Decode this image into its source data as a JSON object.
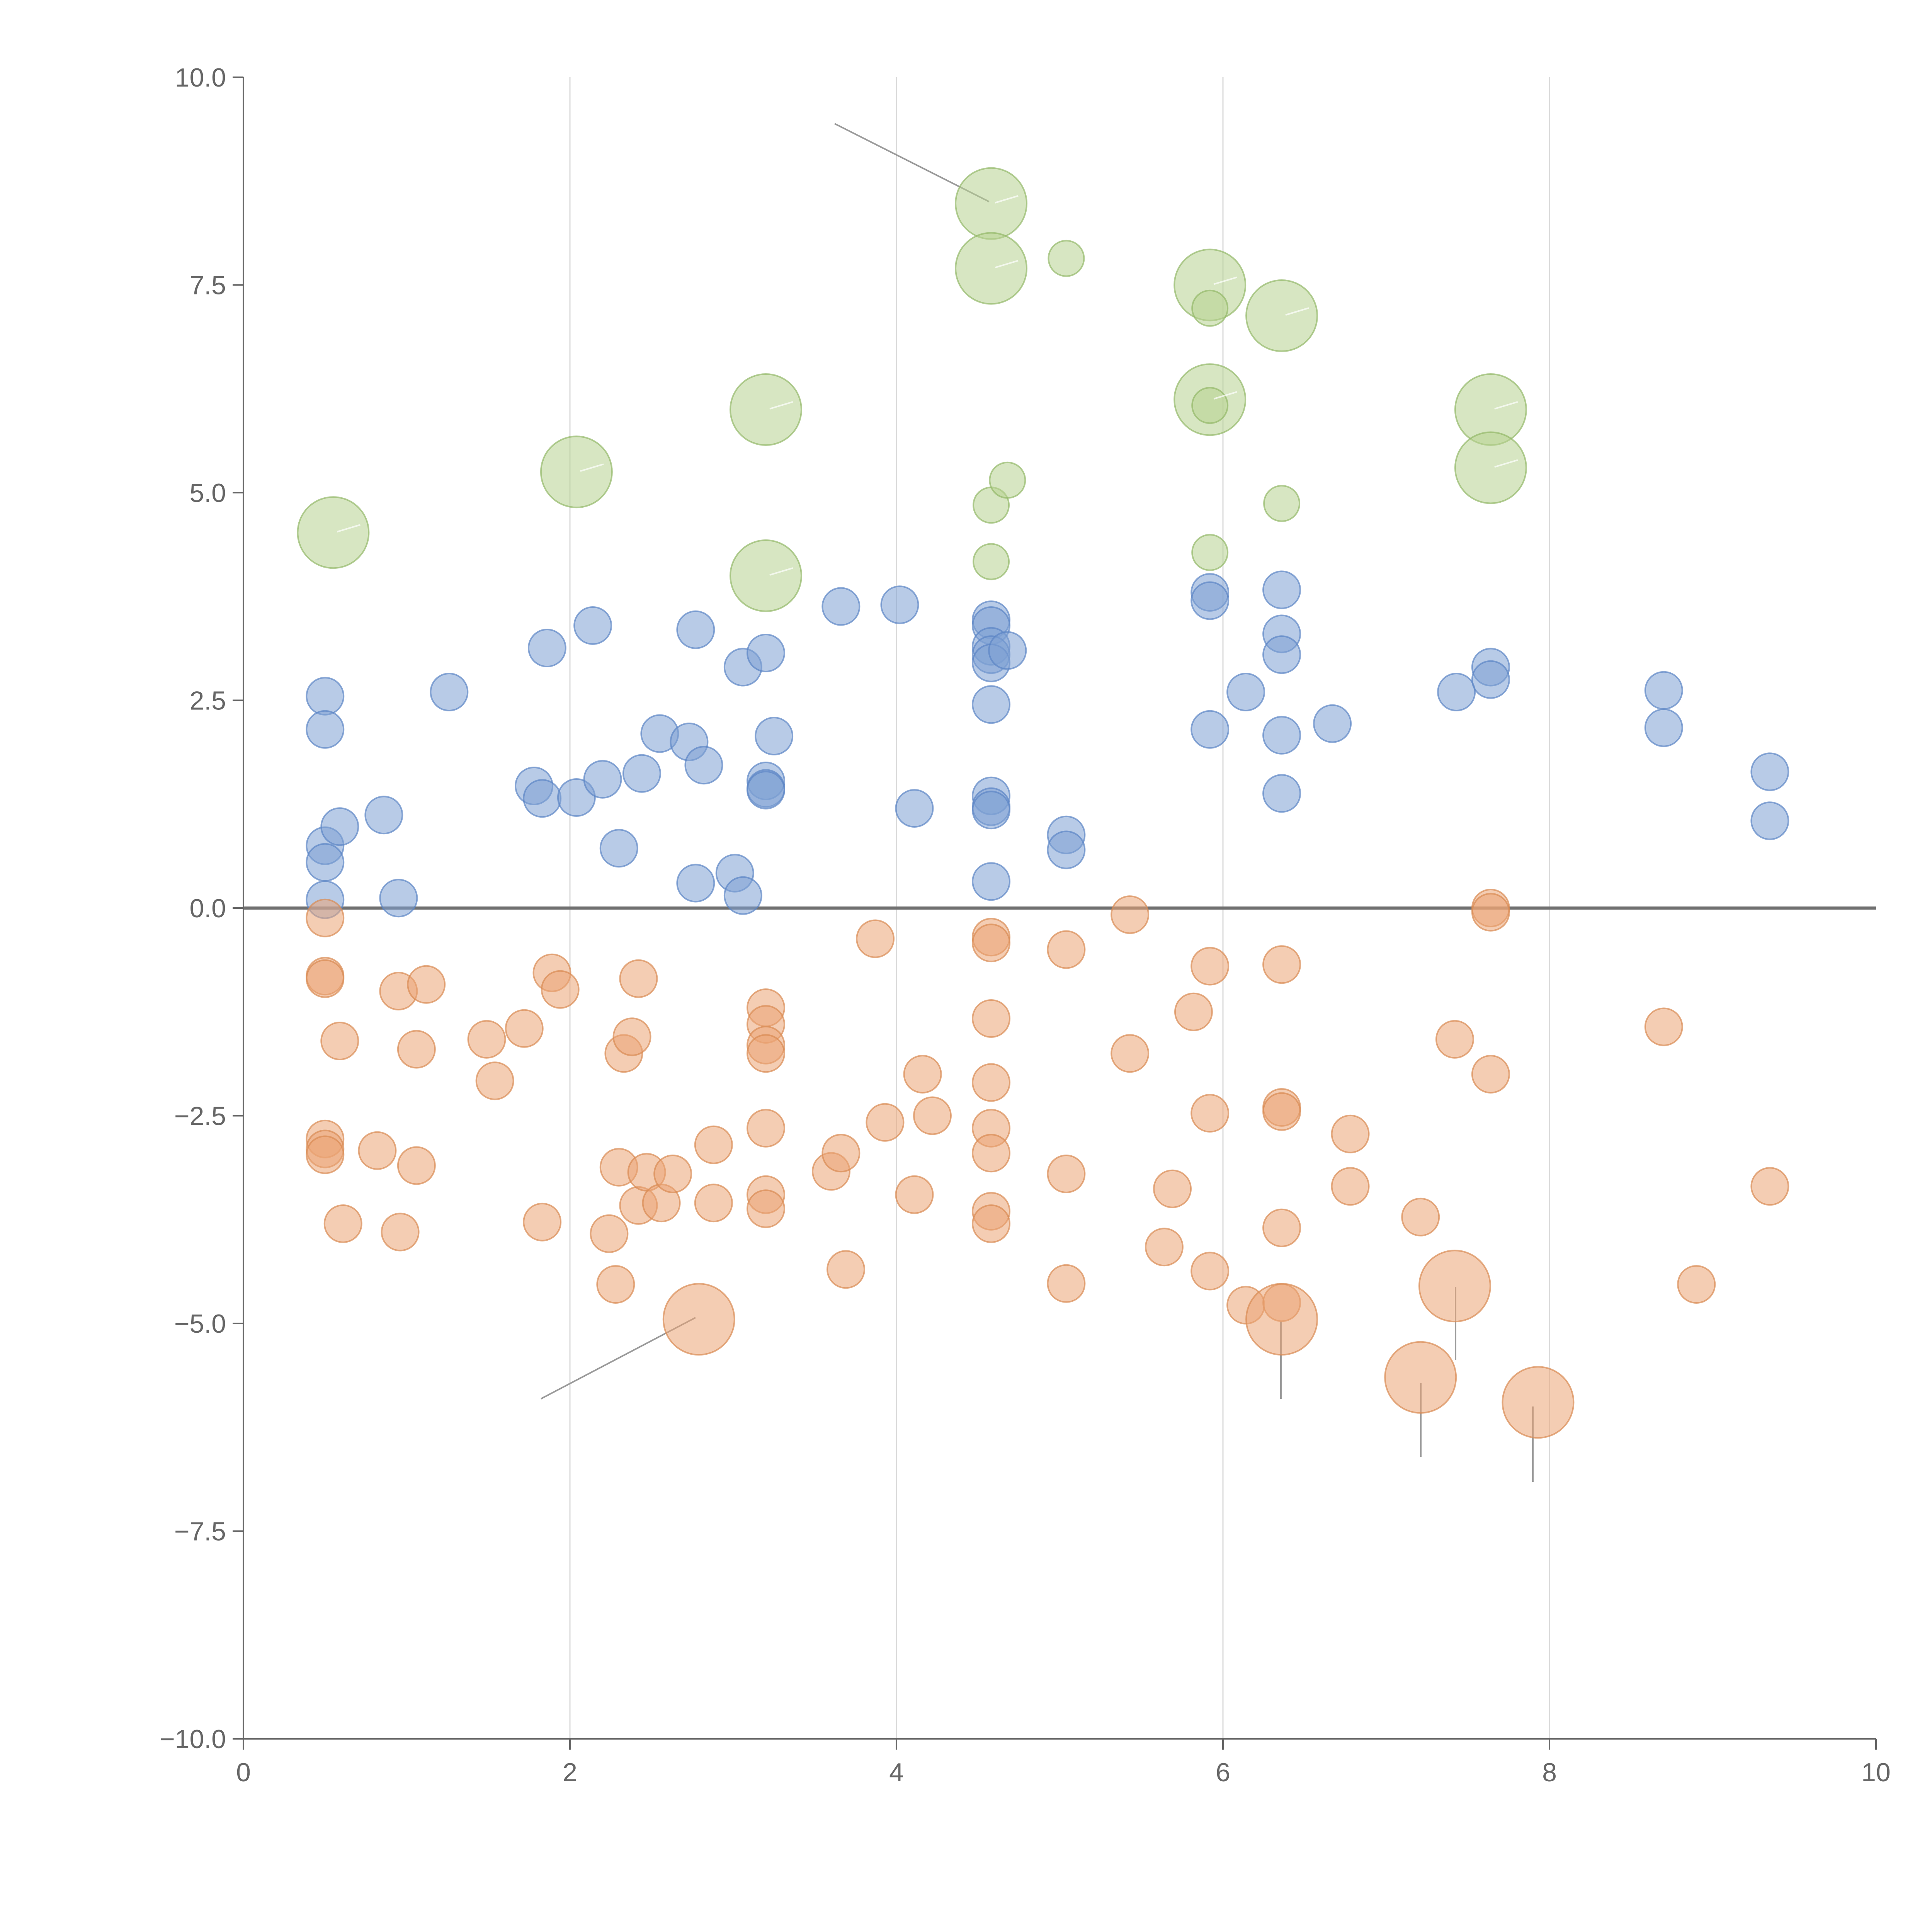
{
  "chart_data": {
    "type": "scatter",
    "title": "",
    "xlabel": "",
    "ylabel": "",
    "xlim": [
      0,
      10
    ],
    "ylim": [
      -10,
      10
    ],
    "x_ticks": [
      0,
      2,
      4,
      6,
      8,
      10
    ],
    "x_tick_labels": [
      "0",
      "2",
      "4",
      "6",
      "8",
      "10"
    ],
    "y_ticks": [
      10,
      7.5,
      5,
      2.5,
      0,
      -2.5,
      -5,
      -7.5,
      -10
    ],
    "y_tick_labels": [
      "10.0",
      "7.5",
      "5.0",
      "2.5",
      "0.0",
      "−2.5",
      "−5.0",
      "−7.5",
      "−10.0"
    ],
    "vertical_grid_at": [
      2,
      4,
      6,
      8
    ],
    "reference_line_y": 0,
    "colors": {
      "blue": "#7da0d4",
      "blue_edge": "#5b84c4",
      "green": "#b6d28f",
      "green_edge": "#93b868",
      "orange": "#eba474",
      "orange_edge": "#d98a52",
      "axis": "#666666",
      "grid": "#d9d9d9"
    },
    "series": [
      {
        "name": "blue",
        "points": [
          [
            0.5,
            2.55
          ],
          [
            0.5,
            2.15
          ],
          [
            0.5,
            0.75
          ],
          [
            0.5,
            0.55
          ],
          [
            0.5,
            0.1
          ],
          [
            0.59,
            0.98
          ],
          [
            0.86,
            1.12
          ],
          [
            0.95,
            0.12
          ],
          [
            1.26,
            2.6
          ],
          [
            1.78,
            1.47
          ],
          [
            1.83,
            1.32
          ],
          [
            1.86,
            3.13
          ],
          [
            2.04,
            1.33
          ],
          [
            2.14,
            3.4
          ],
          [
            2.2,
            1.55
          ],
          [
            2.3,
            0.72
          ],
          [
            2.44,
            1.62
          ],
          [
            2.55,
            2.1
          ],
          [
            2.73,
            2.0
          ],
          [
            2.77,
            0.3
          ],
          [
            2.77,
            3.35
          ],
          [
            2.82,
            1.72
          ],
          [
            3.01,
            0.42
          ],
          [
            3.06,
            0.15
          ],
          [
            3.06,
            2.9
          ],
          [
            3.2,
            3.07
          ],
          [
            3.2,
            1.53
          ],
          [
            3.2,
            1.44
          ],
          [
            3.2,
            1.42
          ],
          [
            3.25,
            2.07
          ],
          [
            3.66,
            3.63
          ],
          [
            4.02,
            3.65
          ],
          [
            4.11,
            1.2
          ],
          [
            4.58,
            3.47
          ],
          [
            4.58,
            3.4
          ],
          [
            4.58,
            3.15
          ],
          [
            4.58,
            3.05
          ],
          [
            4.58,
            2.95
          ],
          [
            4.58,
            2.45
          ],
          [
            4.58,
            1.35
          ],
          [
            4.58,
            1.22
          ],
          [
            4.58,
            1.18
          ],
          [
            4.58,
            0.32
          ],
          [
            4.68,
            3.1
          ],
          [
            5.04,
            0.88
          ],
          [
            5.04,
            0.7
          ],
          [
            5.92,
            3.8
          ],
          [
            5.92,
            3.7
          ],
          [
            5.92,
            2.15
          ],
          [
            6.14,
            2.6
          ],
          [
            6.36,
            3.83
          ],
          [
            6.36,
            3.3
          ],
          [
            6.36,
            3.05
          ],
          [
            6.36,
            2.08
          ],
          [
            6.36,
            1.38
          ],
          [
            6.67,
            2.22
          ],
          [
            7.43,
            2.6
          ],
          [
            7.64,
            2.9
          ],
          [
            7.64,
            2.75
          ],
          [
            8.7,
            2.62
          ],
          [
            8.7,
            2.17
          ],
          [
            9.35,
            1.64
          ],
          [
            9.35,
            1.05
          ]
        ]
      },
      {
        "name": "green",
        "points": [
          [
            0.55,
            4.52,
            "L"
          ],
          [
            2.04,
            5.25,
            "L"
          ],
          [
            3.2,
            6.0,
            "L"
          ],
          [
            3.2,
            4.0,
            "L"
          ],
          [
            4.58,
            8.48,
            "L"
          ],
          [
            4.58,
            7.7,
            "L"
          ],
          [
            4.58,
            4.85,
            "S"
          ],
          [
            4.58,
            4.17,
            "S"
          ],
          [
            4.68,
            5.15,
            "S"
          ],
          [
            5.04,
            7.82,
            "S"
          ],
          [
            5.92,
            7.5,
            "L"
          ],
          [
            5.92,
            7.22,
            "S"
          ],
          [
            5.92,
            6.12,
            "L"
          ],
          [
            5.92,
            6.05,
            "S"
          ],
          [
            5.92,
            4.28,
            "S"
          ],
          [
            6.36,
            7.13,
            "L"
          ],
          [
            6.36,
            4.87,
            "S"
          ],
          [
            7.64,
            6.0,
            "L"
          ],
          [
            7.64,
            5.3,
            "L"
          ]
        ]
      },
      {
        "name": "orange",
        "points": [
          [
            0.5,
            -0.12
          ],
          [
            0.5,
            -0.82
          ],
          [
            0.5,
            -0.85
          ],
          [
            0.5,
            -2.78
          ],
          [
            0.5,
            -2.9
          ],
          [
            0.5,
            -2.97
          ],
          [
            0.59,
            -1.6
          ],
          [
            0.61,
            -3.8
          ],
          [
            0.82,
            -2.92
          ],
          [
            0.95,
            -1.0
          ],
          [
            0.96,
            -3.9
          ],
          [
            1.06,
            -1.7
          ],
          [
            1.06,
            -3.1
          ],
          [
            1.12,
            -0.92
          ],
          [
            1.49,
            -1.58
          ],
          [
            1.54,
            -2.08
          ],
          [
            1.72,
            -1.45
          ],
          [
            1.83,
            -3.78
          ],
          [
            1.89,
            -0.78
          ],
          [
            1.94,
            -0.98
          ],
          [
            2.24,
            -3.92
          ],
          [
            2.28,
            -4.53
          ],
          [
            2.3,
            -3.12
          ],
          [
            2.33,
            -1.75
          ],
          [
            2.38,
            -1.55
          ],
          [
            2.42,
            -0.85
          ],
          [
            2.42,
            -3.58
          ],
          [
            2.47,
            -3.18
          ],
          [
            2.56,
            -3.55
          ],
          [
            2.63,
            -3.2
          ],
          [
            2.79,
            -4.95,
            "L"
          ],
          [
            2.88,
            -2.85
          ],
          [
            2.88,
            -3.55
          ],
          [
            3.2,
            -1.2
          ],
          [
            3.2,
            -1.4
          ],
          [
            3.2,
            -1.65
          ],
          [
            3.2,
            -1.75
          ],
          [
            3.2,
            -2.65
          ],
          [
            3.2,
            -3.45
          ],
          [
            3.2,
            -3.62
          ],
          [
            3.6,
            -3.17
          ],
          [
            3.66,
            -2.95
          ],
          [
            3.69,
            -4.35
          ],
          [
            3.87,
            -0.37
          ],
          [
            3.93,
            -2.58
          ],
          [
            4.11,
            -3.45
          ],
          [
            4.16,
            -2.0
          ],
          [
            4.22,
            -2.5
          ],
          [
            4.58,
            -0.35
          ],
          [
            4.58,
            -0.42
          ],
          [
            4.58,
            -1.33
          ],
          [
            4.58,
            -2.1
          ],
          [
            4.58,
            -2.65
          ],
          [
            4.58,
            -2.95
          ],
          [
            4.58,
            -3.65
          ],
          [
            4.58,
            -3.8
          ],
          [
            5.04,
            -0.5
          ],
          [
            5.04,
            -3.2
          ],
          [
            5.04,
            -4.52
          ],
          [
            5.43,
            -0.08
          ],
          [
            5.43,
            -1.75
          ],
          [
            5.64,
            -4.08
          ],
          [
            5.69,
            -3.38
          ],
          [
            5.82,
            -1.25
          ],
          [
            5.92,
            -0.7
          ],
          [
            5.92,
            -2.47
          ],
          [
            5.92,
            -4.37
          ],
          [
            6.14,
            -4.78
          ],
          [
            6.36,
            -0.68
          ],
          [
            6.36,
            -2.4
          ],
          [
            6.36,
            -2.45
          ],
          [
            6.36,
            -3.85
          ],
          [
            6.36,
            -4.75
          ],
          [
            6.36,
            -4.95,
            "L"
          ],
          [
            6.78,
            -2.72
          ],
          [
            6.78,
            -3.35
          ],
          [
            7.21,
            -3.72
          ],
          [
            7.21,
            -5.65,
            "L"
          ],
          [
            7.42,
            -1.58
          ],
          [
            7.42,
            -4.55,
            "L"
          ],
          [
            7.64,
            0.0
          ],
          [
            7.64,
            -0.05
          ],
          [
            7.64,
            -2.0
          ],
          [
            7.93,
            -5.95,
            "L"
          ],
          [
            8.7,
            -1.43
          ],
          [
            8.9,
            -4.53
          ],
          [
            9.35,
            -3.35
          ]
        ]
      }
    ]
  }
}
